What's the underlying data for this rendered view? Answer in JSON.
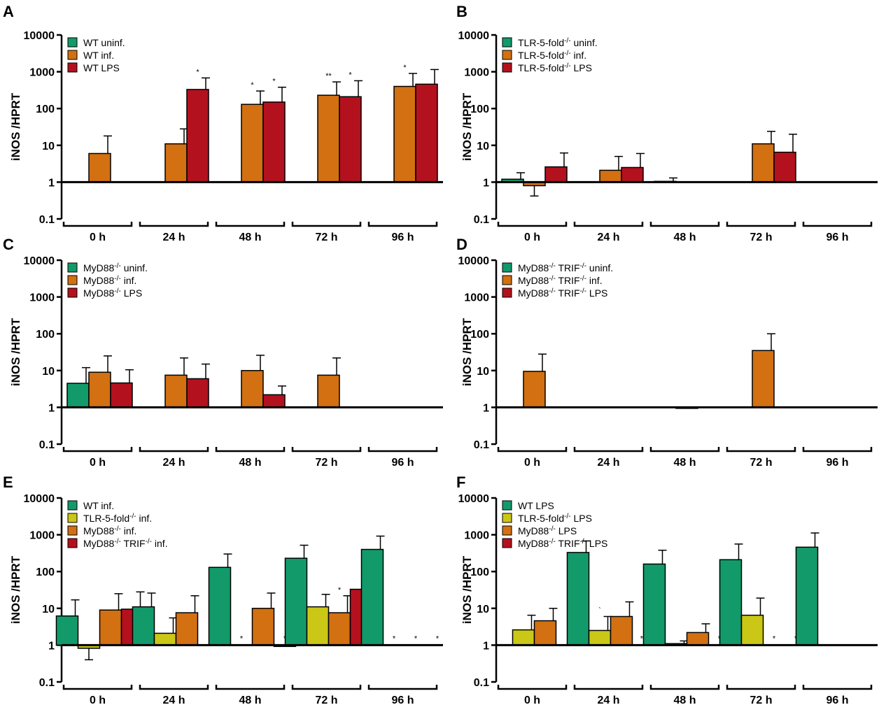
{
  "figure": {
    "colors": {
      "green": "#139a6a",
      "orange": "#d27012",
      "red": "#b4111e",
      "yellow": "#cbc716",
      "axis": "#000000"
    },
    "y_axis_title": "iNOS /HPRT",
    "y_tick_labels": [
      "0.1",
      "1",
      "10",
      "100",
      "1000",
      "10000"
    ],
    "time_labels": [
      "0 h",
      "24 h",
      "48 h",
      "72 h",
      "96 h"
    ]
  },
  "chart_data": [
    {
      "panel": "A",
      "type": "bar",
      "yscale": "log",
      "ylim": [
        0.1,
        10000
      ],
      "ylabel": "iNOS /HPRT",
      "categories": [
        "0 h",
        "24 h",
        "48 h",
        "72 h",
        "96 h"
      ],
      "series": [
        {
          "name": "WT uninf.",
          "color": "green",
          "values": [
            null,
            null,
            null,
            null,
            null
          ],
          "errors": [
            null,
            null,
            null,
            null,
            null
          ],
          "sig": [
            "",
            "",
            "",
            "",
            ""
          ]
        },
        {
          "name": "WT inf.",
          "color": "orange",
          "values": [
            6,
            11,
            130,
            230,
            400
          ],
          "errors": [
            18,
            28,
            300,
            530,
            900
          ],
          "sig": [
            "",
            "",
            "*",
            "**",
            "*"
          ]
        },
        {
          "name": "WT LPS",
          "color": "red",
          "values": [
            null,
            330,
            150,
            210,
            460
          ],
          "errors": [
            null,
            680,
            380,
            570,
            1150
          ],
          "sig": [
            "",
            "*",
            "*",
            "*",
            ""
          ]
        }
      ]
    },
    {
      "panel": "B",
      "type": "bar",
      "yscale": "log",
      "ylim": [
        0.1,
        10000
      ],
      "ylabel": "iNOS /HPRT",
      "categories": [
        "0 h",
        "24 h",
        "48 h",
        "72 h",
        "96 h"
      ],
      "series": [
        {
          "name": "TLR-5-fold",
          "sup": "-/-",
          "name_after": " uninf.",
          "color": "green",
          "values": [
            1.2,
            null,
            1.05,
            null,
            null
          ],
          "errors": [
            1.8,
            null,
            1.3,
            null,
            null
          ],
          "sig": [
            "",
            "",
            "",
            "",
            ""
          ]
        },
        {
          "name": "TLR-5-fold",
          "sup": "-/-",
          "name_after": " inf.",
          "color": "orange",
          "values": [
            0.8,
            2.1,
            null,
            11,
            null
          ],
          "errors": [
            0.42,
            5,
            null,
            24,
            null
          ],
          "sig": [
            "",
            "",
            "",
            "",
            ""
          ]
        },
        {
          "name": "TLR-5-fold",
          "sup": "-/-",
          "name_after": " LPS",
          "color": "red",
          "values": [
            2.6,
            2.5,
            null,
            6.5,
            null
          ],
          "errors": [
            6.2,
            6,
            null,
            20,
            null
          ],
          "sig": [
            "",
            "",
            "",
            "",
            ""
          ]
        }
      ]
    },
    {
      "panel": "C",
      "type": "bar",
      "yscale": "log",
      "ylim": [
        0.1,
        10000
      ],
      "ylabel": "iNOS /HPRT",
      "categories": [
        "0 h",
        "24 h",
        "48 h",
        "72 h",
        "96 h"
      ],
      "series": [
        {
          "name": "MyD88",
          "sup": "-/-",
          "name_after": " uninf.",
          "color": "green",
          "values": [
            4.5,
            null,
            null,
            null,
            null
          ],
          "errors": [
            12,
            null,
            null,
            null,
            null
          ],
          "sig": [
            "",
            "",
            "",
            "",
            ""
          ]
        },
        {
          "name": "MyD88",
          "sup": "-/-",
          "name_after": " inf.",
          "color": "orange",
          "values": [
            9,
            7.5,
            10,
            7.5,
            null
          ],
          "errors": [
            25,
            22,
            26,
            22,
            null
          ],
          "sig": [
            "",
            "",
            "",
            "",
            ""
          ]
        },
        {
          "name": "MyD88",
          "sup": "-/-",
          "name_after": " LPS",
          "color": "red",
          "values": [
            4.6,
            6,
            2.2,
            null,
            null
          ],
          "errors": [
            10.5,
            15,
            3.8,
            null,
            null
          ],
          "sig": [
            "",
            "",
            "",
            "",
            ""
          ]
        }
      ]
    },
    {
      "panel": "D",
      "type": "bar",
      "yscale": "log",
      "ylim": [
        0.1,
        10000
      ],
      "ylabel": "iNOS /HPRT",
      "categories": [
        "0 h",
        "24 h",
        "48 h",
        "72 h",
        "96 h"
      ],
      "series": [
        {
          "name": "MyD88",
          "sup": "-/-",
          "name_after": " TRIF",
          "sup2": "-/-",
          "name_after2": " uninf.",
          "color": "green",
          "values": [
            null,
            null,
            null,
            null,
            null
          ],
          "errors": [
            null,
            null,
            null,
            null,
            null
          ],
          "sig": [
            "",
            "",
            "",
            "",
            ""
          ]
        },
        {
          "name": "MyD88",
          "sup": "-/-",
          "name_after": " TRIF",
          "sup2": "-/-",
          "name_after2": "  inf.",
          "color": "orange",
          "values": [
            9.5,
            null,
            0.95,
            35,
            null
          ],
          "errors": [
            28,
            null,
            null,
            100,
            null
          ],
          "sig": [
            "",
            "",
            "",
            "",
            ""
          ]
        },
        {
          "name": "MyD88",
          "sup": "-/-",
          "name_after": " TRIF",
          "sup2": "-/-",
          "name_after2": "  LPS",
          "color": "red",
          "values": [
            null,
            null,
            null,
            null,
            null
          ],
          "errors": [
            null,
            null,
            null,
            null,
            null
          ],
          "sig": [
            "",
            "",
            "",
            "",
            ""
          ]
        }
      ]
    },
    {
      "panel": "E",
      "type": "bar",
      "yscale": "log",
      "ylim": [
        0.1,
        10000
      ],
      "ylabel": "iNOS /HPRT",
      "categories": [
        "0 h",
        "24 h",
        "48 h",
        "72 h",
        "96 h"
      ],
      "series": [
        {
          "name": "WT inf.",
          "color": "green",
          "values": [
            6.2,
            11,
            130,
            230,
            400
          ],
          "errors": [
            17,
            26,
            300,
            520,
            920
          ],
          "sig": [
            "",
            "",
            "",
            "",
            ""
          ]
        },
        {
          "name": "TLR-5-fold",
          "sup": "-/-",
          "name_after": " inf.",
          "color": "yellow",
          "values": [
            0.82,
            2.1,
            null,
            11,
            null
          ],
          "errors": [
            0.4,
            5.5,
            null,
            24,
            null
          ],
          "sig": [
            "",
            "",
            "*",
            "",
            "*"
          ]
        },
        {
          "name": "MyD88",
          "sup": "-/-",
          "name_after": " inf.",
          "color": "orange",
          "values": [
            9,
            7.6,
            10,
            7.6,
            null
          ],
          "errors": [
            25,
            22,
            26,
            22,
            null
          ],
          "sig": [
            "",
            "",
            "",
            "*",
            "*"
          ]
        },
        {
          "name": "MyD88",
          "sup": "-/-",
          "name_after": " TRIF",
          "sup2": "-/-",
          "name_after2": "  inf.",
          "color": "red",
          "values": [
            9.5,
            null,
            0.92,
            33,
            null
          ],
          "errors": [
            28,
            null,
            null,
            100,
            null
          ],
          "sig": [
            "",
            "",
            "*",
            "",
            "*"
          ]
        }
      ]
    },
    {
      "panel": "F",
      "type": "bar",
      "yscale": "log",
      "ylim": [
        0.1,
        10000
      ],
      "ylabel": "iNOS /HPRT",
      "categories": [
        "0 h",
        "24 h",
        "48 h",
        "72 h",
        "96 h"
      ],
      "series": [
        {
          "name": "WT LPS",
          "color": "green",
          "values": [
            null,
            330,
            160,
            210,
            460
          ],
          "errors": [
            null,
            680,
            380,
            560,
            1120
          ],
          "sig": [
            "",
            "",
            "",
            "",
            ""
          ]
        },
        {
          "name": "TLR-5-fold",
          "sup": "-/-",
          "name_after": " LPS",
          "color": "yellow",
          "values": [
            2.6,
            2.5,
            1.1,
            6.5,
            null
          ],
          "errors": [
            6.5,
            6,
            1.3,
            19,
            null
          ],
          "sig": [
            "",
            "`",
            "",
            "",
            ""
          ]
        },
        {
          "name": "MyD88",
          "sup": "-/-",
          "name_after": " LPS",
          "color": "orange",
          "values": [
            4.6,
            6,
            2.2,
            null,
            null
          ],
          "errors": [
            10,
            15,
            3.8,
            null,
            null
          ],
          "sig": [
            "",
            "",
            "",
            "*",
            ""
          ]
        },
        {
          "name": "MyD88",
          "sup": "-/-",
          "name_after": " TRIF",
          "sup2": "-/-",
          "name_after2": " LPS",
          "color": "red",
          "values": [
            null,
            null,
            null,
            null,
            null
          ],
          "errors": [
            null,
            null,
            null,
            null,
            null
          ],
          "sig": [
            "",
            "**",
            "*",
            "*",
            ""
          ]
        }
      ]
    }
  ]
}
